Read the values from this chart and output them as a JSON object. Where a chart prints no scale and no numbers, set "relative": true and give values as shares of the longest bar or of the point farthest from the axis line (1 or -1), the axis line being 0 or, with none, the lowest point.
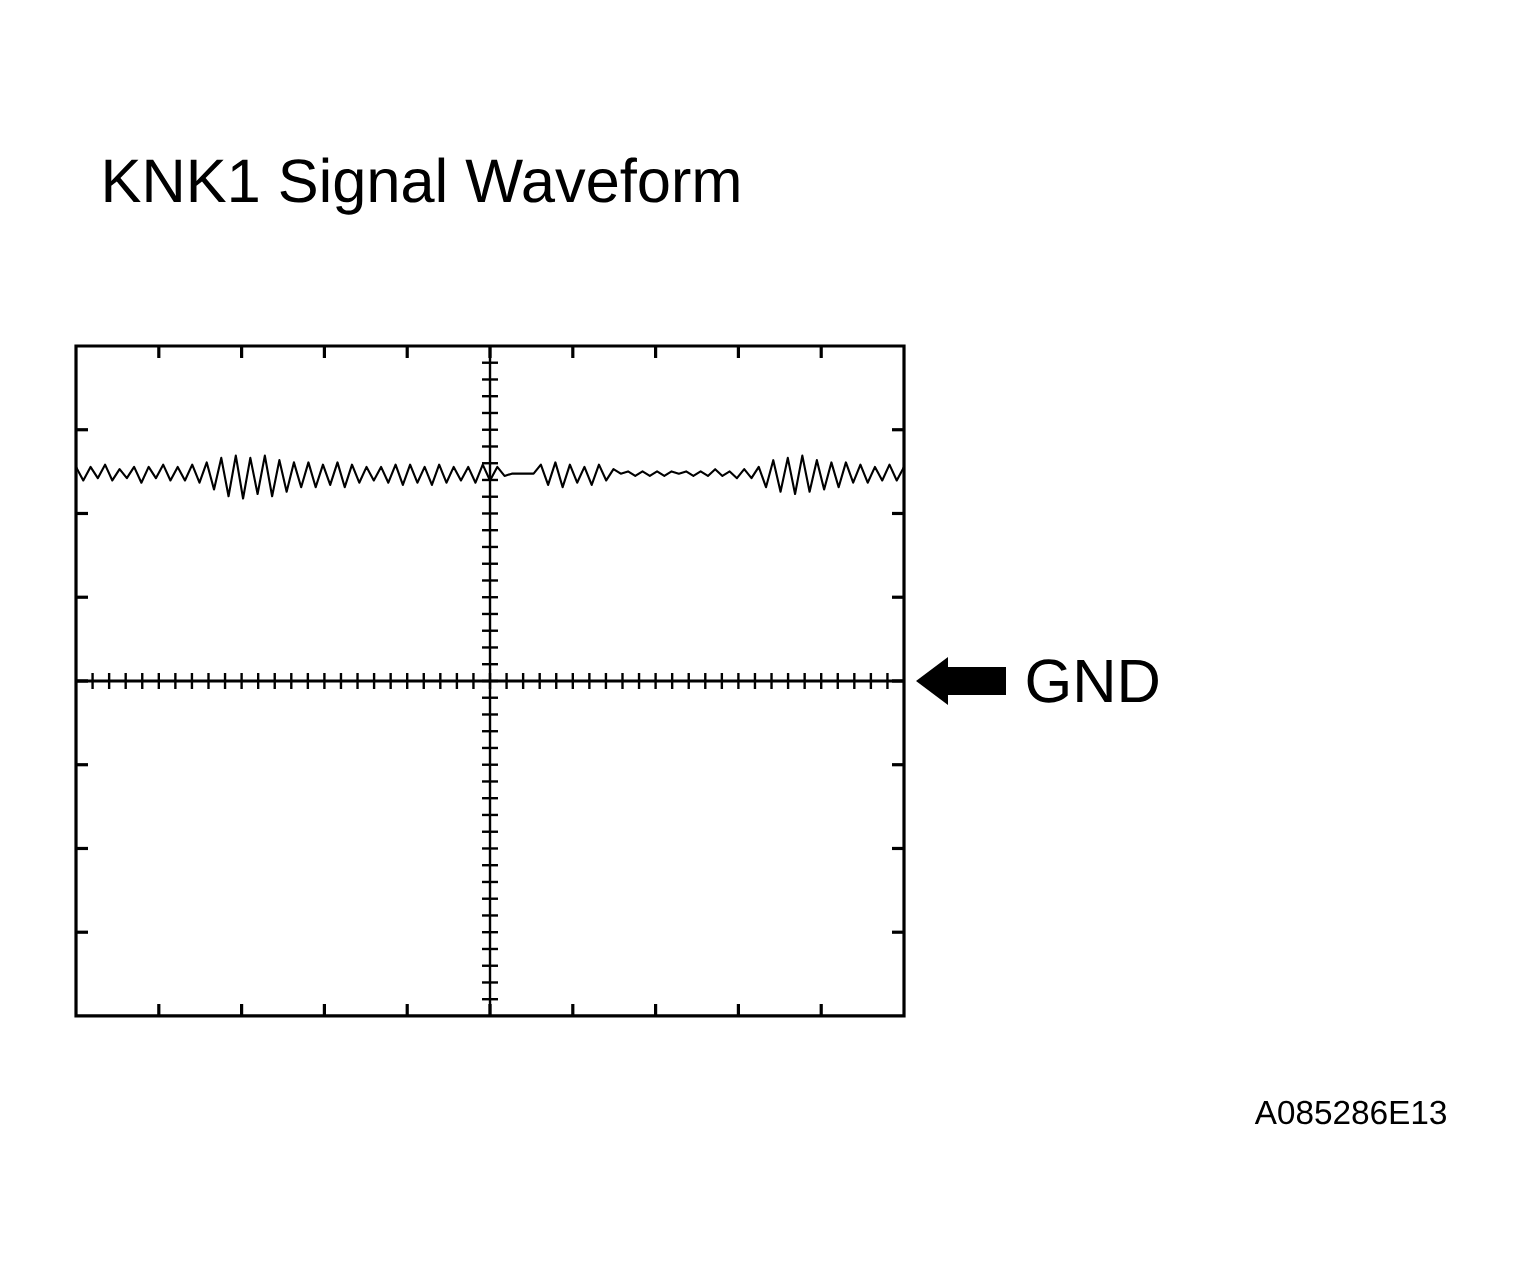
{
  "chart_data": {
    "type": "line",
    "title": "KNK1 Signal Waveform",
    "relative": true,
    "color": "#000000",
    "categories": [
      null,
      null,
      null,
      null,
      null,
      null,
      null,
      null,
      null,
      null,
      null,
      null,
      null,
      null,
      null,
      null,
      null,
      null,
      null,
      null,
      null,
      null,
      null,
      null,
      null,
      null,
      null,
      null,
      null,
      null,
      null,
      null,
      null,
      null,
      null,
      null,
      null,
      null,
      null,
      null,
      null,
      null,
      null,
      null,
      null,
      null,
      null,
      null,
      null,
      null,
      null,
      null,
      null,
      null,
      null,
      null,
      null,
      null,
      null,
      null,
      null,
      null,
      null,
      null,
      null,
      null,
      null,
      null,
      null,
      null,
      null,
      null,
      null,
      null,
      null,
      null,
      null,
      null,
      null,
      null,
      null,
      null,
      null,
      null,
      null,
      null,
      null,
      null,
      null,
      null,
      null,
      null,
      null,
      null,
      null,
      null,
      null,
      null,
      null,
      null,
      null,
      null,
      null,
      null,
      null,
      null,
      null,
      null,
      null,
      null,
      null,
      null,
      null,
      null,
      null
    ],
    "values": [
      0.95,
      0.89,
      0.95,
      0.9,
      0.96,
      0.89,
      0.94,
      0.9,
      0.95,
      0.88,
      0.95,
      0.9,
      0.96,
      0.89,
      0.95,
      0.89,
      0.96,
      0.88,
      0.97,
      0.85,
      0.99,
      0.82,
      1.0,
      0.81,
      0.99,
      0.83,
      1.0,
      0.82,
      0.98,
      0.84,
      0.97,
      0.86,
      0.97,
      0.86,
      0.96,
      0.87,
      0.97,
      0.86,
      0.96,
      0.88,
      0.95,
      0.89,
      0.95,
      0.88,
      0.96,
      0.87,
      0.96,
      0.88,
      0.95,
      0.87,
      0.96,
      0.88,
      0.95,
      0.89,
      0.95,
      0.88,
      0.96,
      0.89,
      0.95,
      0.91,
      0.92,
      0.92,
      0.92,
      0.92,
      0.96,
      0.87,
      0.97,
      0.86,
      0.96,
      0.88,
      0.95,
      0.87,
      0.96,
      0.89,
      0.94,
      0.92,
      0.93,
      0.91,
      0.93,
      0.91,
      0.93,
      0.91,
      0.93,
      0.92,
      0.93,
      0.91,
      0.93,
      0.91,
      0.94,
      0.91,
      0.93,
      0.9,
      0.94,
      0.9,
      0.95,
      0.86,
      0.98,
      0.84,
      0.99,
      0.83,
      1.0,
      0.84,
      0.98,
      0.85,
      0.97,
      0.86,
      0.97,
      0.88,
      0.96,
      0.88,
      0.95,
      0.89,
      0.96,
      0.89,
      0.95
    ],
    "ref_lines": [
      {
        "axis": "y",
        "value": 0,
        "label": "GND"
      }
    ],
    "annotations": [
      "A085286E13"
    ]
  }
}
